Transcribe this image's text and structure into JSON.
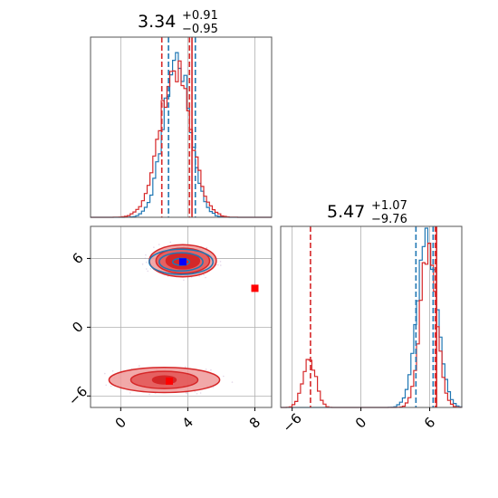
{
  "chart_data": [
    {
      "type": "histogram",
      "panel": "param-1-marginal",
      "title": {
        "value": "3.34",
        "plus": "+0.91",
        "minus": "−0.95"
      },
      "xlim": [
        -1.8,
        9.0
      ],
      "ylim": [
        0,
        1.0
      ],
      "colors": {
        "blue": "#1f77b4",
        "red": "#d62728"
      },
      "series": [
        {
          "color": "#1f77b4",
          "kind": "gaussian",
          "mean": 3.35,
          "std": 0.78,
          "peak": 0.88
        },
        {
          "color": "#d62728",
          "kind": "gaussian",
          "mean": 3.25,
          "std": 0.92,
          "peak": 0.82
        }
      ],
      "quantile_lines": [
        {
          "color": "#d62728",
          "x": [
            2.45,
            4.1
          ]
        },
        {
          "color": "#1f77b4",
          "x": [
            2.85,
            4.45
          ]
        }
      ],
      "reference_lines": [
        {
          "color": "#d62728",
          "x": 4.25
        }
      ],
      "grid": true
    },
    {
      "type": "contour",
      "panel": "joint-param-1-param-2",
      "xlim": [
        -1.8,
        9.0
      ],
      "ylim": [
        -7.0,
        8.8
      ],
      "xticks": [
        "0",
        "4",
        "8"
      ],
      "yticks": [
        "−6",
        "0",
        "6"
      ],
      "contours": [
        {
          "color": "#d62728",
          "center": [
            3.7,
            5.8
          ],
          "rx": [
            2.0,
            1.6,
            1.0
          ],
          "ry": [
            1.4,
            1.1,
            0.7
          ]
        },
        {
          "color": "#1f77b4",
          "center": [
            3.6,
            5.7
          ],
          "rx": [
            1.9,
            1.3,
            0.5
          ],
          "ry": [
            1.1,
            0.8,
            0.3
          ]
        },
        {
          "color": "#d62728",
          "center": [
            2.6,
            -4.6
          ],
          "rx": [
            3.3,
            2.0,
            0.7
          ],
          "ry": [
            1.1,
            0.75,
            0.35
          ]
        }
      ],
      "markers": [
        {
          "color": "#0000ff",
          "x": 3.7,
          "y": 5.7
        },
        {
          "color": "#ff0000",
          "x": 2.9,
          "y": -4.7
        },
        {
          "color": "#ff0000",
          "x": 8.0,
          "y": 3.4
        }
      ],
      "grid": true
    },
    {
      "type": "histogram",
      "panel": "param-2-marginal",
      "title": {
        "value": "5.47",
        "plus": "+1.07",
        "minus": "−9.76"
      },
      "xlim": [
        -7.0,
        8.8
      ],
      "ylim": [
        0,
        1.0
      ],
      "xticks": [
        "−6",
        "0",
        "6"
      ],
      "series": [
        {
          "color": "#1f77b4",
          "kind": "gaussian",
          "mean": 5.8,
          "std": 0.85,
          "peak": 0.93
        },
        {
          "color": "#d62728",
          "kind": "bimodal",
          "modes": [
            {
              "mean": 5.9,
              "std": 0.7,
              "peak": 0.9
            },
            {
              "mean": -4.5,
              "std": 0.55,
              "peak": 0.27
            }
          ]
        }
      ],
      "quantile_lines": [
        {
          "color": "#d62728",
          "x": [
            -4.4,
            6.5
          ]
        },
        {
          "color": "#1f77b4",
          "x": [
            4.8,
            6.3
          ]
        }
      ],
      "reference_lines": [
        {
          "color": "#d62728",
          "x": 6.6
        }
      ],
      "grid": true
    }
  ]
}
